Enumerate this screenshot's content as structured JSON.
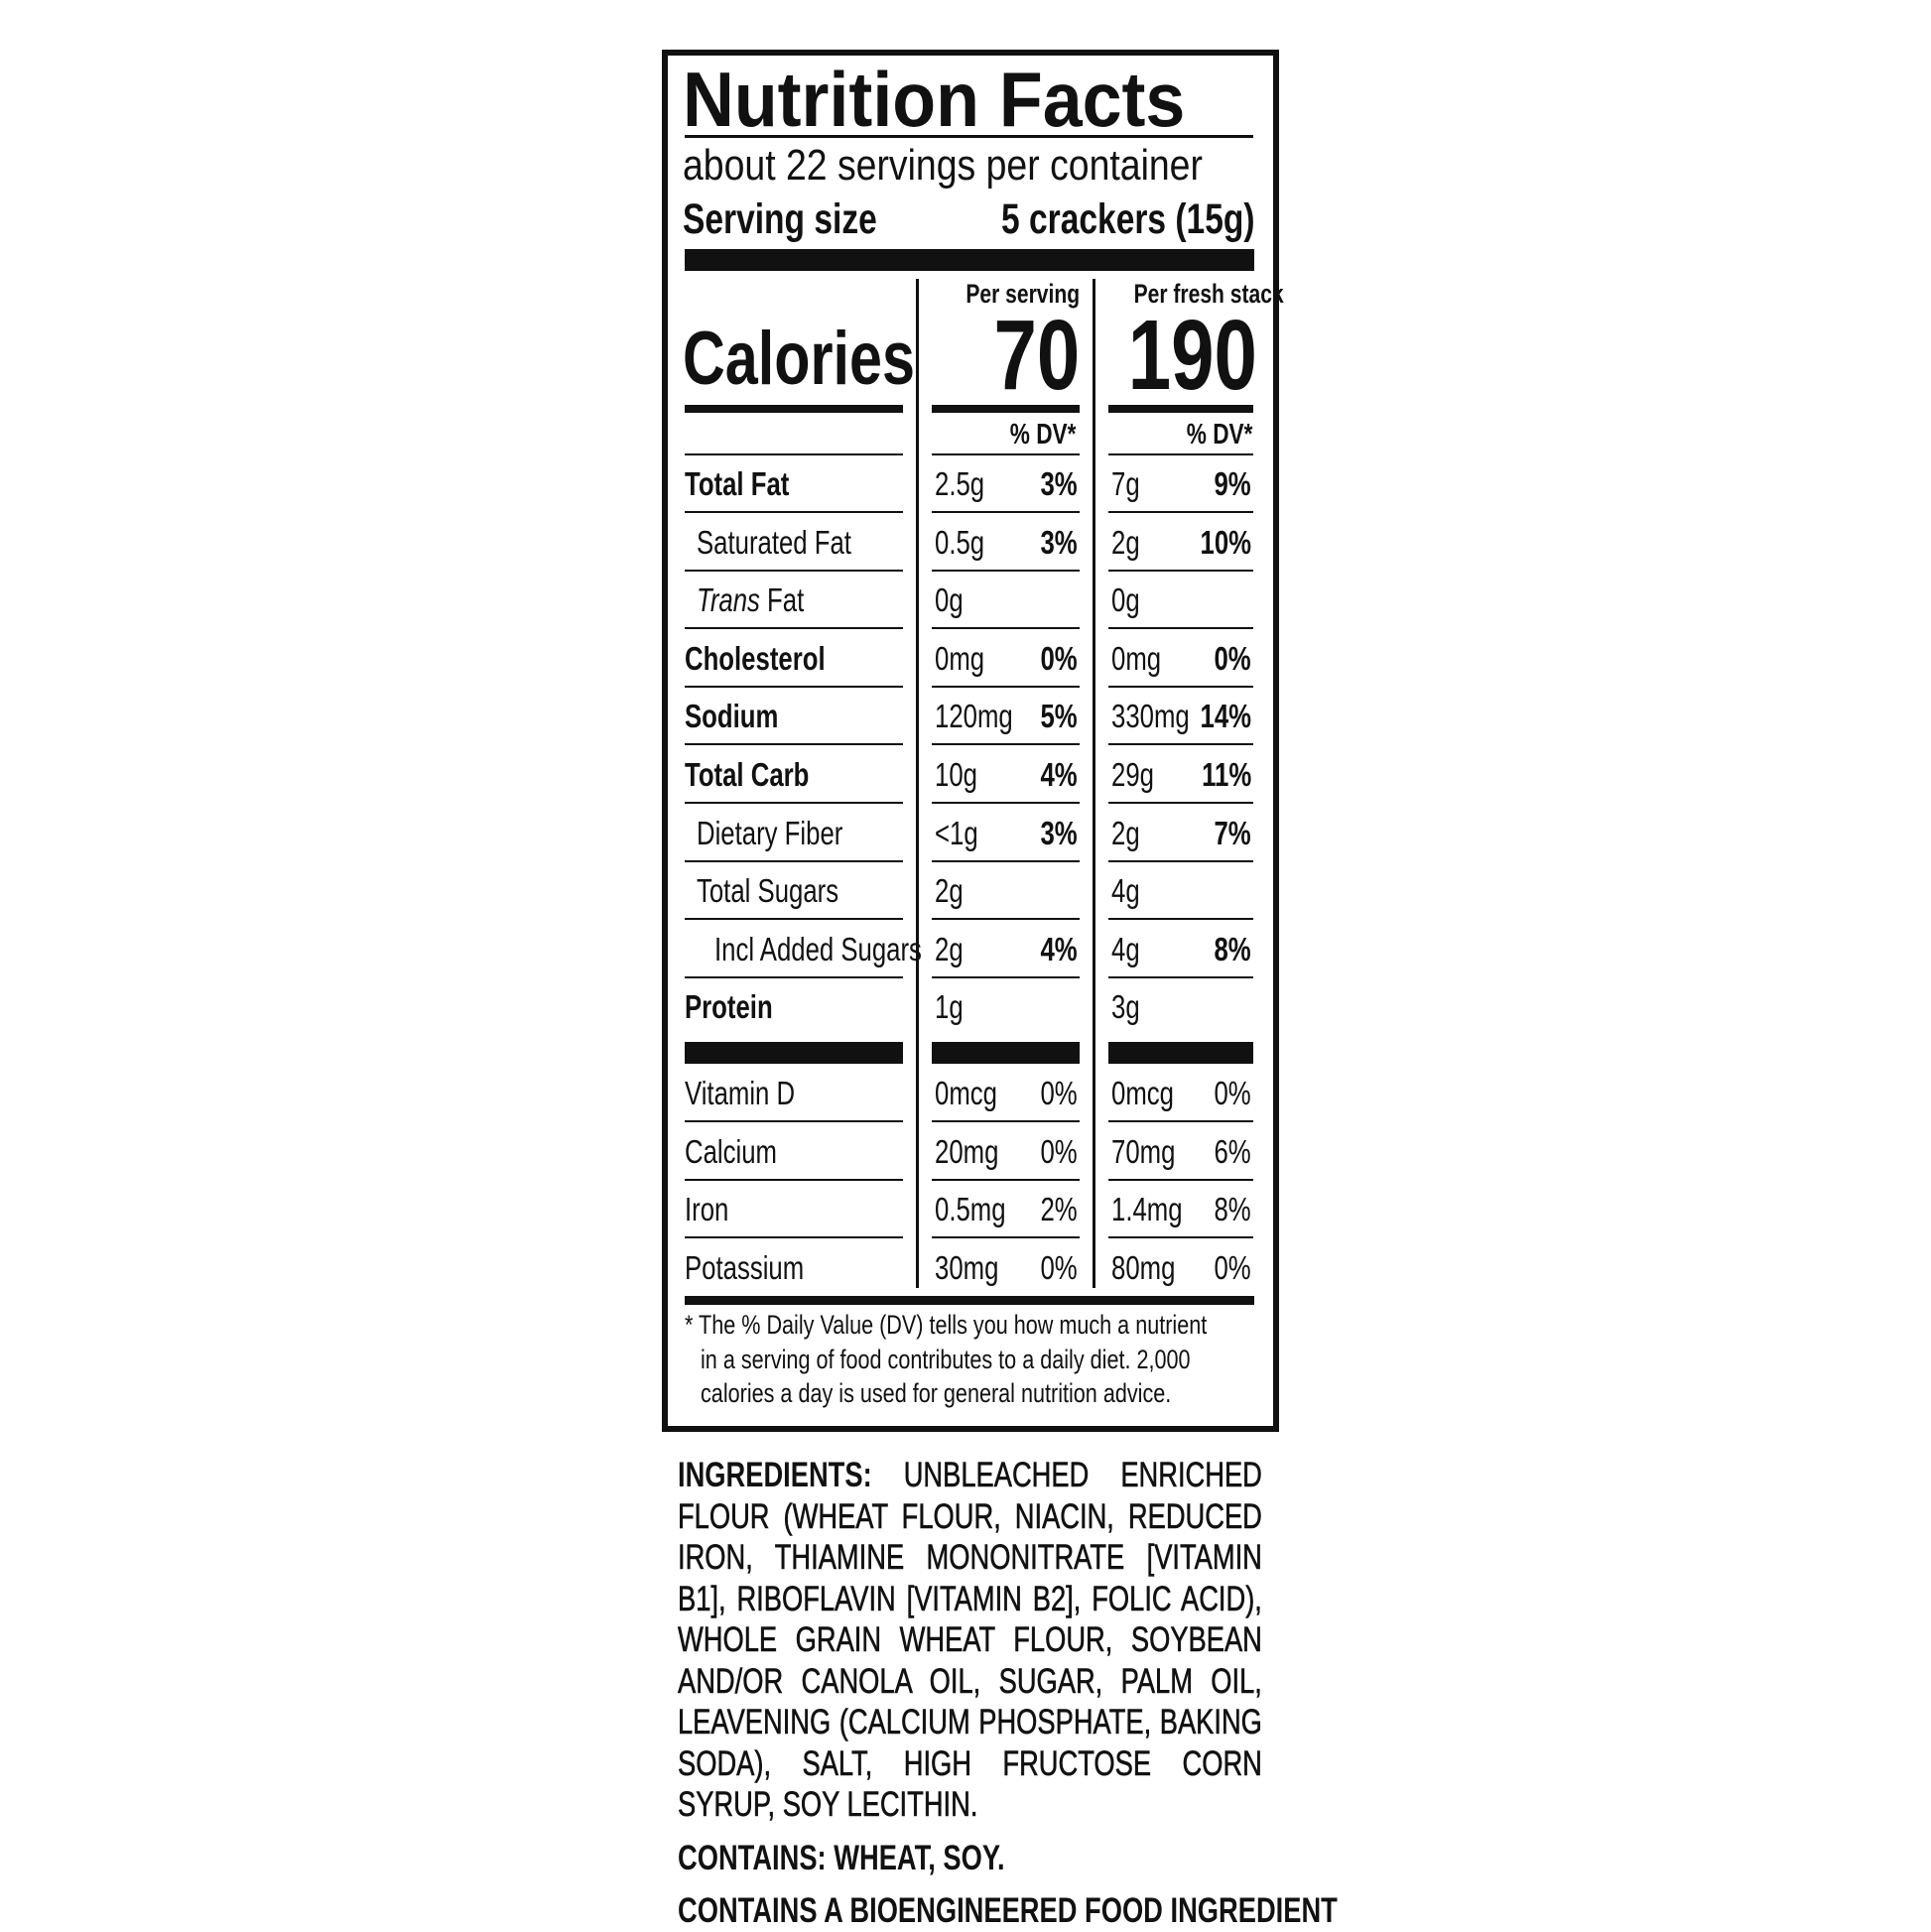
{
  "label": {
    "title": "Nutrition Facts",
    "servings_per_container": "about 22 servings per container",
    "serving_size_label": "Serving size",
    "serving_size_value": "5 crackers (15g)",
    "calories_label": "Calories",
    "col1_header": "Per serving",
    "col2_header": "Per fresh stack",
    "col1_calories": "70",
    "col2_calories": "190",
    "dv_header": "% DV*",
    "nutrients": [
      {
        "name": "Total Fat",
        "bold": true,
        "indent": 0,
        "v1": "2.5g",
        "p1": "3%",
        "v2": "7g",
        "p2": "9%"
      },
      {
        "name": "Saturated Fat",
        "bold": false,
        "indent": 1,
        "v1": "0.5g",
        "p1": "3%",
        "v2": "2g",
        "p2": "10%"
      },
      {
        "name": "Fat",
        "prefix_italic": "Trans",
        "bold": false,
        "indent": 1,
        "v1": "0g",
        "p1": "",
        "v2": "0g",
        "p2": ""
      },
      {
        "name": "Cholesterol",
        "bold": true,
        "indent": 0,
        "v1": "0mg",
        "p1": "0%",
        "v2": "0mg",
        "p2": "0%"
      },
      {
        "name": "Sodium",
        "bold": true,
        "indent": 0,
        "v1": "120mg",
        "p1": "5%",
        "v2": "330mg",
        "p2": "14%"
      },
      {
        "name": "Total Carb",
        "bold": true,
        "indent": 0,
        "v1": "10g",
        "p1": "4%",
        "v2": "29g",
        "p2": "11%"
      },
      {
        "name": "Dietary Fiber",
        "bold": false,
        "indent": 1,
        "v1": "<1g",
        "p1": "3%",
        "v2": "2g",
        "p2": "7%"
      },
      {
        "name": "Total Sugars",
        "bold": false,
        "indent": 1,
        "v1": "2g",
        "p1": "",
        "v2": "4g",
        "p2": ""
      },
      {
        "name": "Incl Added Sugars",
        "bold": false,
        "indent": 2,
        "v1": "2g",
        "p1": "4%",
        "v2": "4g",
        "p2": "8%"
      },
      {
        "name": "Protein",
        "bold": true,
        "indent": 0,
        "v1": "1g",
        "p1": "",
        "v2": "3g",
        "p2": ""
      }
    ],
    "vitamins": [
      {
        "name": "Vitamin D",
        "v1": "0mcg",
        "p1": "0%",
        "v2": "0mcg",
        "p2": "0%"
      },
      {
        "name": "Calcium",
        "v1": "20mg",
        "p1": "0%",
        "v2": "70mg",
        "p2": "6%"
      },
      {
        "name": "Iron",
        "v1": "0.5mg",
        "p1": "2%",
        "v2": "1.4mg",
        "p2": "8%"
      },
      {
        "name": "Potassium",
        "v1": "30mg",
        "p1": "0%",
        "v2": "80mg",
        "p2": "0%"
      }
    ],
    "footnote_lines": [
      "* The % Daily Value (DV) tells you how much a nutrient",
      "in a serving of food contributes to a daily diet. 2,000",
      "calories a day is used for general nutrition advice."
    ]
  },
  "ingredients": {
    "label": "INGREDIENTS:",
    "text": "UNBLEACHED ENRICHED FLOUR (WHEAT FLOUR, NIACIN, REDUCED IRON, THIAMINE MONONITRATE [VITAMIN B1], RIBOFLAVIN [VITAMIN B2], FOLIC ACID), WHOLE GRAIN WHEAT FLOUR, SOYBEAN AND/OR CANOLA OIL, SUGAR, PALM OIL, LEAVENING (CALCIUM PHOSPHATE, BAKING SODA), SALT, HIGH FRUCTOSE CORN SYRUP, SOY LECITHIN.",
    "contains": "CONTAINS: WHEAT, SOY.",
    "bioengineered": "CONTAINS A BIOENGINEERED FOOD INGREDIENT"
  }
}
